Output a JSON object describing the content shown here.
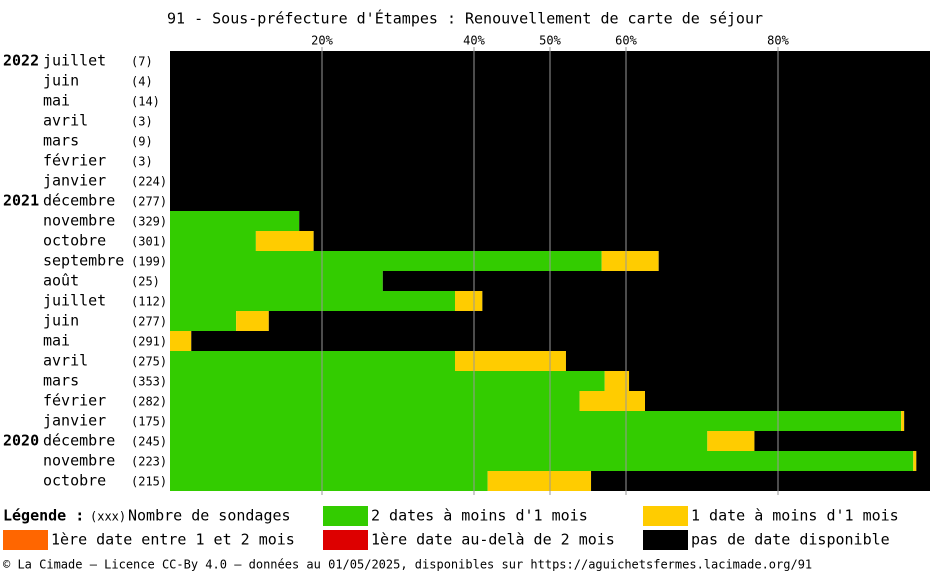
{
  "chart_data": {
    "type": "stacked-bar-horizontal",
    "title": "91 - Sous-préfecture d'Étampes : Renouvellement de carte de séjour",
    "categories": [
      "juillet",
      "juin",
      "mai",
      "avril",
      "mars",
      "février",
      "janvier",
      "décembre",
      "novembre",
      "octobre",
      "septembre",
      "août",
      "juillet",
      "juin",
      "mai",
      "avril",
      "mars",
      "février",
      "janvier",
      "décembre",
      "novembre",
      "octobre"
    ],
    "years": [
      "2022",
      null,
      null,
      null,
      null,
      null,
      null,
      "2021",
      null,
      null,
      null,
      null,
      null,
      null,
      null,
      null,
      null,
      null,
      null,
      "2020",
      null,
      null
    ],
    "count_labels": [
      "(7)",
      "(4)",
      "(14)",
      "(3)",
      "(9)",
      "(3)",
      "(224)",
      "(277)",
      "(329)",
      "(301)",
      "(199)",
      "(25)",
      "(112)",
      "(277)",
      "(291)",
      "(275)",
      "(353)",
      "(282)",
      "(175)",
      "(245)",
      "(223)",
      "(215)"
    ],
    "series": [
      {
        "name": "2 dates à moins d'1 mois",
        "color": "#33cc00",
        "values": [
          0,
          0,
          0,
          0,
          0,
          0,
          0,
          0,
          17.0,
          11.3,
          56.8,
          28.0,
          37.5,
          8.7,
          0,
          37.5,
          57.2,
          53.9,
          96.2,
          70.7,
          97.8,
          41.8
        ]
      },
      {
        "name": "1 date à moins d'1 mois",
        "color": "#ffcc00",
        "values": [
          0,
          0,
          0,
          0,
          0,
          0,
          0,
          0,
          0,
          7.6,
          7.5,
          0,
          3.6,
          4.3,
          2.8,
          14.6,
          3.2,
          8.6,
          0.4,
          6.2,
          0.4,
          13.6
        ]
      },
      {
        "name": "1ère date entre 1 et 2 mois",
        "color": "#ff6600",
        "values": [
          0,
          0,
          0,
          0,
          0,
          0,
          0,
          0,
          0,
          0,
          0,
          0,
          0,
          0,
          0,
          0,
          0,
          0,
          0,
          0,
          0,
          0
        ]
      },
      {
        "name": "1ère date au-delà de 2 mois",
        "color": "#dd0000",
        "values": [
          0,
          0,
          0,
          0,
          0,
          0,
          0,
          0,
          0,
          0,
          0,
          0,
          0,
          0,
          0,
          0,
          0,
          0,
          0,
          0,
          0,
          0
        ]
      },
      {
        "name": "pas de date disponible",
        "color": "#000000",
        "values": [
          100,
          100,
          100,
          100,
          100,
          100,
          100,
          100,
          83.0,
          81.1,
          35.7,
          72.0,
          58.9,
          87.0,
          97.2,
          47.9,
          39.6,
          37.5,
          3.4,
          23.1,
          1.8,
          44.6
        ]
      }
    ],
    "xlim": [
      0,
      100
    ],
    "xticks": [
      {
        "value": 20,
        "label": "20%"
      },
      {
        "value": 40,
        "label": "40%"
      },
      {
        "value": 50,
        "label": "50%"
      },
      {
        "value": 60,
        "label": "60%"
      },
      {
        "value": 80,
        "label": "80%"
      }
    ],
    "grid": true,
    "legend_title": "Légende :",
    "legend_count_marker": "(xxx)",
    "legend_count_text": "Nombre de sondages",
    "footer": "© La Cimade — Licence CC-By 4.0 — données au 01/05/2025, disponibles sur https://aguichetsfermes.lacimade.org/91"
  }
}
